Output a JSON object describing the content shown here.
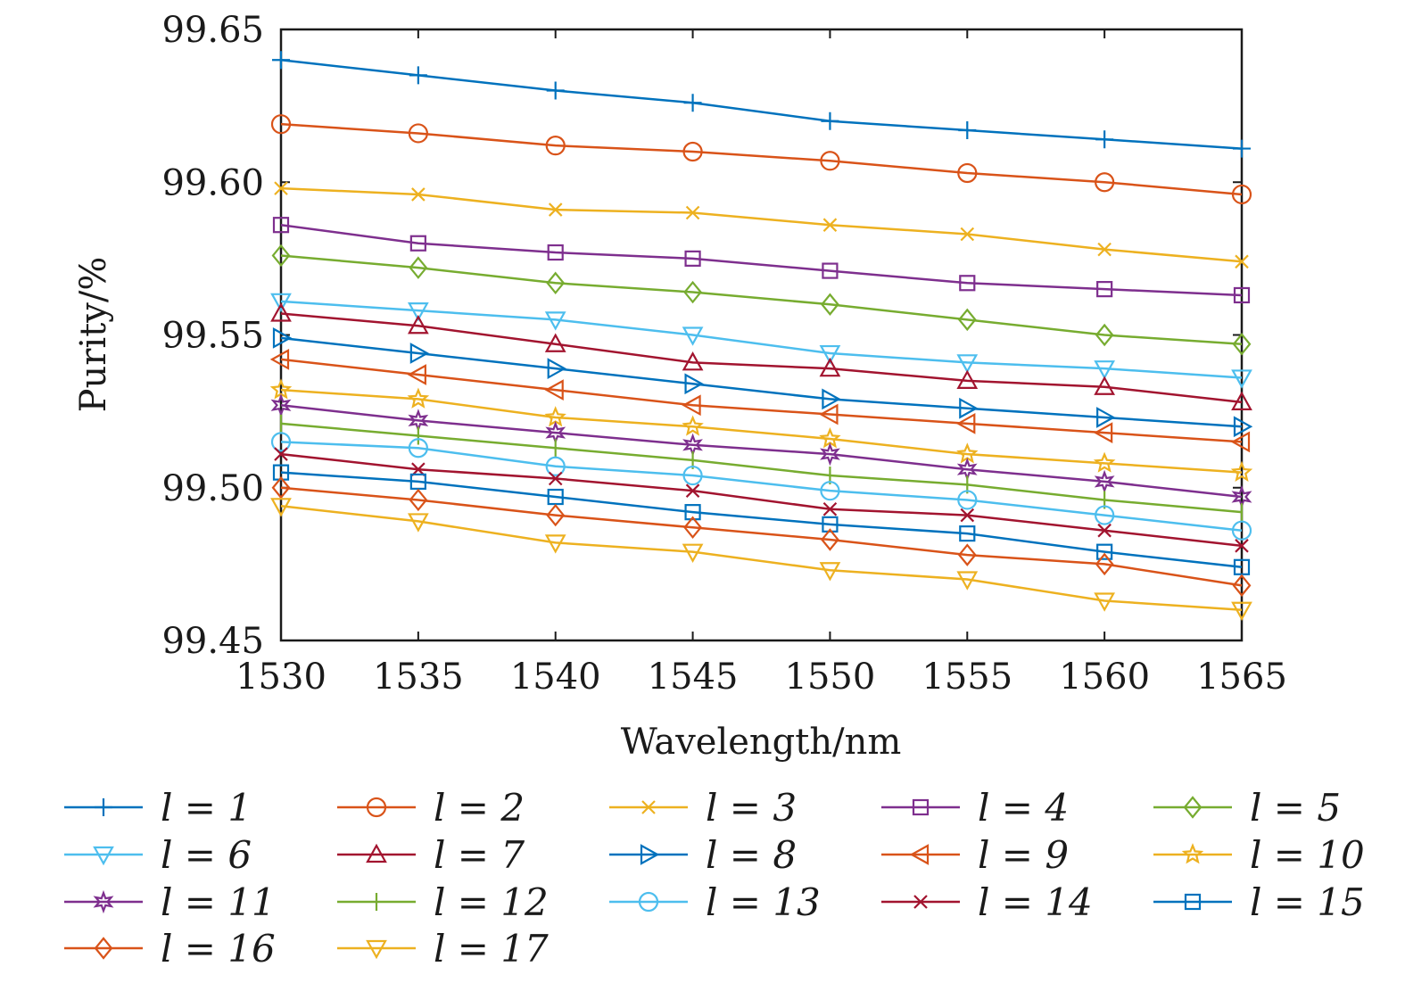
{
  "chart_data": {
    "type": "line",
    "title": "",
    "xlabel": "Wavelength/nm",
    "ylabel": "Purity/%",
    "xlim": [
      1530,
      1565
    ],
    "ylim": [
      99.45,
      99.65
    ],
    "xticks": [
      "1530",
      "1535",
      "1540",
      "1545",
      "1550",
      "1555",
      "1560",
      "1565"
    ],
    "yticks": [
      "99.45",
      "99.50",
      "99.55",
      "99.60",
      "99.65"
    ],
    "grid": false,
    "legend_placement": "bottom",
    "x": [
      1530,
      1535,
      1540,
      1545,
      1550,
      1555,
      1560,
      1565
    ],
    "series": [
      {
        "name": "l = 1",
        "color": "#0072BD",
        "marker": "plus",
        "values": [
          99.64,
          99.635,
          99.63,
          99.626,
          99.62,
          99.617,
          99.614,
          99.611
        ]
      },
      {
        "name": "l = 2",
        "color": "#D95319",
        "marker": "circle",
        "values": [
          99.619,
          99.616,
          99.612,
          99.61,
          99.607,
          99.603,
          99.6,
          99.596
        ]
      },
      {
        "name": "l = 3",
        "color": "#EDB120",
        "marker": "x",
        "values": [
          99.598,
          99.596,
          99.591,
          99.59,
          99.586,
          99.583,
          99.578,
          99.574
        ]
      },
      {
        "name": "l = 4",
        "color": "#7E2F8E",
        "marker": "square",
        "values": [
          99.586,
          99.58,
          99.577,
          99.575,
          99.571,
          99.567,
          99.565,
          99.563
        ]
      },
      {
        "name": "l = 5",
        "color": "#77AC30",
        "marker": "diamond",
        "values": [
          99.576,
          99.572,
          99.567,
          99.564,
          99.56,
          99.555,
          99.55,
          99.547
        ]
      },
      {
        "name": "l = 6",
        "color": "#4DBEEE",
        "marker": "triangle-down",
        "values": [
          99.561,
          99.558,
          99.555,
          99.55,
          99.544,
          99.541,
          99.539,
          99.536
        ]
      },
      {
        "name": "l = 7",
        "color": "#A2142F",
        "marker": "triangle-up",
        "values": [
          99.557,
          99.553,
          99.547,
          99.541,
          99.539,
          99.535,
          99.533,
          99.528
        ]
      },
      {
        "name": "l = 8",
        "color": "#0072BD",
        "marker": "triangle-right",
        "values": [
          99.549,
          99.544,
          99.539,
          99.534,
          99.529,
          99.526,
          99.523,
          99.52
        ]
      },
      {
        "name": "l = 9",
        "color": "#D95319",
        "marker": "triangle-left",
        "values": [
          99.542,
          99.537,
          99.532,
          99.527,
          99.524,
          99.521,
          99.518,
          99.515
        ]
      },
      {
        "name": "l = 10",
        "color": "#EDB120",
        "marker": "pentagram",
        "values": [
          99.532,
          99.529,
          99.523,
          99.52,
          99.516,
          99.511,
          99.508,
          99.505
        ]
      },
      {
        "name": "l = 11",
        "color": "#7E2F8E",
        "marker": "hexagram",
        "values": [
          99.527,
          99.522,
          99.518,
          99.514,
          99.511,
          99.506,
          99.502,
          99.497
        ]
      },
      {
        "name": "l = 12",
        "color": "#77AC30",
        "marker": "vline",
        "values": [
          99.521,
          99.517,
          99.513,
          99.509,
          99.504,
          99.501,
          99.496,
          99.492
        ]
      },
      {
        "name": "l = 13",
        "color": "#4DBEEE",
        "marker": "circle",
        "values": [
          99.515,
          99.513,
          99.507,
          99.504,
          99.499,
          99.496,
          99.491,
          99.486
        ]
      },
      {
        "name": "l = 14",
        "color": "#A2142F",
        "marker": "x",
        "values": [
          99.511,
          99.506,
          99.503,
          99.499,
          99.493,
          99.491,
          99.486,
          99.481
        ]
      },
      {
        "name": "l = 15",
        "color": "#0072BD",
        "marker": "square",
        "values": [
          99.505,
          99.502,
          99.497,
          99.492,
          99.488,
          99.485,
          99.479,
          99.474
        ]
      },
      {
        "name": "l = 16",
        "color": "#D95319",
        "marker": "diamond",
        "values": [
          99.5,
          99.496,
          99.491,
          99.487,
          99.483,
          99.478,
          99.475,
          99.468
        ]
      },
      {
        "name": "l = 17",
        "color": "#EDB120",
        "marker": "triangle-down",
        "values": [
          99.494,
          99.489,
          99.482,
          99.479,
          99.473,
          99.47,
          99.463,
          99.46
        ]
      }
    ]
  }
}
